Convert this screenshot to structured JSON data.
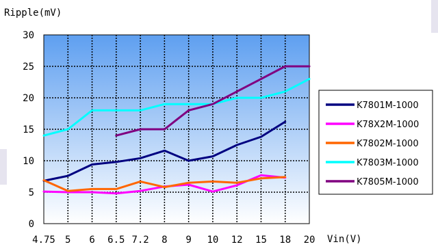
{
  "chart_data": {
    "type": "line",
    "ylabel": "Ripple(mV)",
    "xlabel": "Vin(V)",
    "categories": [
      "4.75",
      "5",
      "6",
      "6.5",
      "7.2",
      "8",
      "9",
      "10",
      "12",
      "15",
      "18",
      "20"
    ],
    "ylim": [
      0,
      30
    ],
    "yticks": [
      0,
      5,
      10,
      15,
      20,
      25,
      30
    ],
    "grid": true,
    "legend_position": "right",
    "series": [
      {
        "name": "K7801M-1000",
        "color": "#000080",
        "values": [
          6.8,
          7.6,
          9.4,
          9.8,
          10.4,
          11.6,
          10.0,
          10.7,
          12.5,
          13.8,
          16.2,
          null
        ]
      },
      {
        "name": "K78X2M-1000",
        "color": "#ff00ff",
        "values": [
          5.1,
          5.0,
          5.0,
          4.8,
          5.2,
          5.9,
          6.2,
          5.1,
          6.1,
          7.7,
          7.3,
          null
        ]
      },
      {
        "name": "K7802M-1000",
        "color": "#ff6600",
        "values": [
          6.9,
          5.2,
          5.5,
          5.5,
          6.7,
          5.8,
          6.5,
          6.7,
          6.5,
          7.2,
          7.4,
          null
        ]
      },
      {
        "name": "K7803M-1000",
        "color": "#00ffff",
        "values": [
          14.0,
          15.0,
          18.0,
          18.0,
          18.0,
          19.0,
          19.0,
          19.0,
          20.0,
          20.0,
          21.0,
          23.0
        ]
      },
      {
        "name": "K7805M-1000",
        "color": "#800080",
        "values": [
          null,
          null,
          null,
          14.0,
          15.0,
          15.0,
          18.0,
          19.0,
          21.0,
          23.0,
          25.0,
          25.0
        ]
      }
    ]
  }
}
